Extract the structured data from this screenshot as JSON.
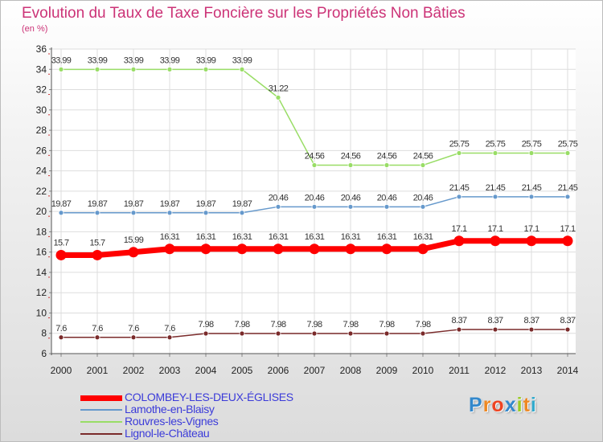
{
  "chart_data": {
    "type": "line",
    "title": "Evolution du Taux de Taxe Foncière sur les Propriétés Non Bâties",
    "ylabel": "(en %)",
    "x": [
      "2000",
      "2001",
      "2002",
      "2003",
      "2004",
      "2005",
      "2006",
      "2007",
      "2008",
      "2009",
      "2010",
      "2011",
      "2012",
      "2013",
      "2014"
    ],
    "ylim": [
      6,
      36
    ],
    "yticks": [
      "6",
      "8",
      "10",
      "12",
      "14",
      "16",
      "18",
      "20",
      "22",
      "24",
      "26",
      "28",
      "30",
      "32",
      "34",
      "36"
    ],
    "series": [
      {
        "name": "COLOMBEY-LES-DEUX-ÉGLISES",
        "color": "#ff0000",
        "values": [
          15.7,
          15.7,
          15.99,
          16.31,
          16.31,
          16.31,
          16.31,
          16.31,
          16.31,
          16.31,
          16.31,
          17.1,
          17.1,
          17.1,
          17.1
        ],
        "labels": [
          "15.7",
          "15.7",
          "15.99",
          "16.31",
          "16.31",
          "16.31",
          "16.31",
          "16.31",
          "16.31",
          "16.31",
          "16.31",
          "17.1",
          "17.1",
          "17.1",
          "17.1"
        ]
      },
      {
        "name": "Lamothe-en-Blaisy",
        "color": "#6699cc",
        "values": [
          19.87,
          19.87,
          19.87,
          19.87,
          19.87,
          19.87,
          20.46,
          20.46,
          20.46,
          20.46,
          20.46,
          21.45,
          21.45,
          21.45,
          21.45
        ],
        "labels": [
          "19.87",
          "19.87",
          "19.87",
          "19.87",
          "19.87",
          "19.87",
          "20.46",
          "20.46",
          "20.46",
          "20.46",
          "20.46",
          "21.45",
          "21.45",
          "21.45",
          "21.45"
        ]
      },
      {
        "name": "Rouvres-les-Vignes",
        "color": "#99dd66",
        "values": [
          33.99,
          33.99,
          33.99,
          33.99,
          33.99,
          33.99,
          31.22,
          24.56,
          24.56,
          24.56,
          24.56,
          25.75,
          25.75,
          25.75,
          25.75
        ],
        "labels": [
          "33.99",
          "33.99",
          "33.99",
          "33.99",
          "33.99",
          "33.99",
          "31.22",
          "24.56",
          "24.56",
          "24.56",
          "24.56",
          "25.75",
          "25.75",
          "25.75",
          "25.75"
        ]
      },
      {
        "name": "Lignol-le-Château",
        "color": "#7a2a2a",
        "values": [
          7.6,
          7.6,
          7.6,
          7.6,
          7.98,
          7.98,
          7.98,
          7.98,
          7.98,
          7.98,
          7.98,
          8.37,
          8.37,
          8.37,
          8.37
        ],
        "labels": [
          "7.6",
          "7.6",
          "7.6",
          "7.6",
          "7.98",
          "7.98",
          "7.98",
          "7.98",
          "7.98",
          "7.98",
          "7.98",
          "8.37",
          "8.37",
          "8.37",
          "8.37"
        ]
      }
    ],
    "grid": true,
    "legend_position": "bottom-left"
  },
  "logo": {
    "letters": [
      "P",
      "r",
      "o",
      "x",
      "i",
      "t",
      "i"
    ],
    "colors": [
      "#3388cc",
      "#ee8822",
      "#ee4422",
      "#3388cc",
      "#99cc22",
      "#ee8822",
      "#33aacc"
    ]
  }
}
